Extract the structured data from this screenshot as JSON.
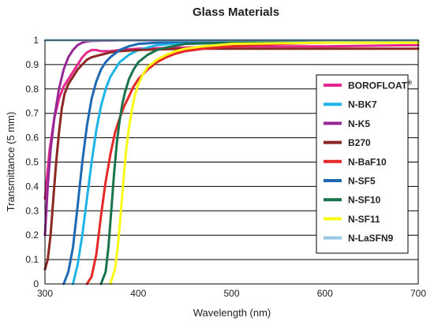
{
  "chart_data": {
    "type": "line",
    "title": "Glass Materials",
    "xlabel": "Wavelength (nm)",
    "ylabel": "Transmittance (5 mm)",
    "xlim": [
      300,
      700
    ],
    "ylim": [
      0,
      1
    ],
    "xticks": [
      "300",
      "400",
      "500",
      "600",
      "700"
    ],
    "xtick_values": [
      300,
      400,
      500,
      600,
      700
    ],
    "yticks": [
      "0",
      "0.1",
      "0.2",
      "0.3",
      "0.4",
      "0.5",
      "0.6",
      "0.7",
      "0.8",
      "0.9",
      "1"
    ],
    "ytick_values": [
      0,
      0.1,
      0.2,
      0.3,
      0.4,
      0.5,
      0.6,
      0.7,
      0.8,
      0.9,
      1.0
    ],
    "grid": "horizontal",
    "legend_position": "right",
    "series": [
      {
        "name": "BOROFLOAT",
        "superscript": "®",
        "color": "#e6268c",
        "x": [
          300,
          305,
          310,
          315,
          320,
          325,
          330,
          335,
          340,
          345,
          350,
          355,
          360,
          370,
          380,
          400,
          450,
          500,
          600,
          700
        ],
        "y": [
          0.35,
          0.55,
          0.68,
          0.76,
          0.81,
          0.84,
          0.87,
          0.9,
          0.93,
          0.95,
          0.96,
          0.96,
          0.955,
          0.955,
          0.96,
          0.965,
          0.97,
          0.975,
          0.975,
          0.98
        ]
      },
      {
        "name": "N-BK7",
        "color": "#1eb4e6",
        "x": [
          330,
          335,
          340,
          345,
          350,
          355,
          360,
          365,
          370,
          375,
          380,
          390,
          400,
          420,
          450,
          500,
          600,
          700
        ],
        "y": [
          0.0,
          0.08,
          0.2,
          0.35,
          0.5,
          0.63,
          0.73,
          0.8,
          0.85,
          0.88,
          0.91,
          0.94,
          0.96,
          0.98,
          0.99,
          0.995,
          0.998,
          0.998
        ]
      },
      {
        "name": "N-K5",
        "color": "#962896",
        "x": [
          300,
          303,
          306,
          310,
          315,
          320,
          325,
          330,
          335,
          340,
          345,
          350,
          360,
          380,
          400,
          500,
          600,
          700
        ],
        "y": [
          0.2,
          0.4,
          0.55,
          0.68,
          0.8,
          0.88,
          0.93,
          0.96,
          0.98,
          0.99,
          0.995,
          0.997,
          0.998,
          0.999,
          0.999,
          0.999,
          0.999,
          0.999
        ]
      },
      {
        "name": "B270",
        "color": "#8c2823",
        "x": [
          300,
          303,
          306,
          309,
          312,
          315,
          318,
          321,
          325,
          330,
          335,
          340,
          345,
          350,
          360,
          370,
          380,
          400,
          450,
          500,
          600,
          700
        ],
        "y": [
          0.06,
          0.1,
          0.2,
          0.35,
          0.5,
          0.62,
          0.72,
          0.78,
          0.82,
          0.85,
          0.88,
          0.9,
          0.92,
          0.93,
          0.94,
          0.95,
          0.955,
          0.96,
          0.965,
          0.965,
          0.965,
          0.965
        ]
      },
      {
        "name": "N-BaF10",
        "color": "#e62828",
        "x": [
          345,
          350,
          355,
          360,
          365,
          370,
          375,
          380,
          385,
          390,
          395,
          400,
          410,
          420,
          430,
          440,
          450,
          470,
          500,
          550,
          600,
          700
        ],
        "y": [
          0.0,
          0.03,
          0.12,
          0.28,
          0.42,
          0.53,
          0.62,
          0.68,
          0.73,
          0.77,
          0.81,
          0.84,
          0.88,
          0.91,
          0.93,
          0.945,
          0.955,
          0.965,
          0.975,
          0.985,
          0.99,
          0.995
        ]
      },
      {
        "name": "N-SF5",
        "color": "#1e69b4",
        "x": [
          320,
          325,
          330,
          335,
          340,
          345,
          350,
          355,
          360,
          365,
          370,
          380,
          390,
          400,
          420,
          450,
          500,
          600,
          700
        ],
        "y": [
          0.0,
          0.05,
          0.15,
          0.32,
          0.5,
          0.65,
          0.76,
          0.83,
          0.88,
          0.91,
          0.93,
          0.96,
          0.975,
          0.985,
          0.99,
          0.995,
          0.998,
          0.998,
          0.998
        ]
      },
      {
        "name": "N-SF10",
        "color": "#19734b",
        "x": [
          360,
          365,
          368,
          371,
          374,
          377,
          380,
          383,
          386,
          390,
          395,
          400,
          410,
          420,
          430,
          450,
          500,
          600,
          700
        ],
        "y": [
          0.0,
          0.05,
          0.15,
          0.3,
          0.45,
          0.58,
          0.67,
          0.74,
          0.79,
          0.84,
          0.88,
          0.91,
          0.94,
          0.96,
          0.97,
          0.985,
          0.99,
          0.993,
          0.995
        ]
      },
      {
        "name": "N-SF11",
        "color": "#fafa14",
        "x": [
          370,
          375,
          378,
          381,
          384,
          387,
          390,
          393,
          396,
          400,
          405,
          410,
          420,
          430,
          440,
          450,
          470,
          500,
          600,
          700
        ],
        "y": [
          0.0,
          0.06,
          0.15,
          0.28,
          0.42,
          0.55,
          0.64,
          0.71,
          0.77,
          0.82,
          0.86,
          0.89,
          0.92,
          0.94,
          0.955,
          0.965,
          0.975,
          0.985,
          0.99,
          0.99
        ]
      },
      {
        "name": "N-LaSFN9",
        "color": "#96c8e6",
        "x": [
          300,
          700
        ],
        "y": [
          1.0,
          1.0
        ]
      }
    ]
  }
}
